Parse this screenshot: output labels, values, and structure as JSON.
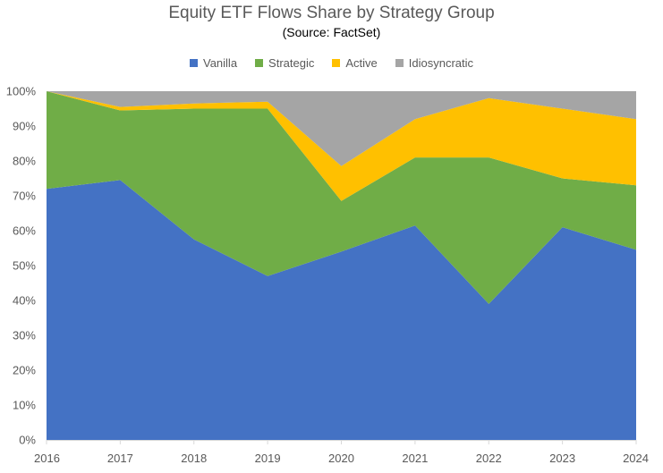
{
  "chart_data": {
    "type": "area",
    "stacked": true,
    "title": "Equity ETF Flows Share by Strategy Group",
    "subtitle": "(Source: FactSet)",
    "x": [
      "2016",
      "2017",
      "2018",
      "2019",
      "2020",
      "2021",
      "2022",
      "2023",
      "2024"
    ],
    "series": [
      {
        "name": "Vanilla",
        "color": "#4472C4",
        "values": [
          72,
          74.5,
          57.5,
          47,
          54,
          61.5,
          39,
          61,
          54.5
        ]
      },
      {
        "name": "Strategic",
        "color": "#70AD47",
        "values": [
          28,
          20,
          37.5,
          48,
          14.5,
          19.5,
          42,
          14,
          18.5
        ]
      },
      {
        "name": "Active",
        "color": "#FFC000",
        "values": [
          0,
          1,
          1.5,
          2,
          10,
          11,
          17,
          20,
          19
        ]
      },
      {
        "name": "Idiosyncratic",
        "color": "#A5A5A5",
        "values": [
          0,
          4.5,
          3.5,
          3,
          21.5,
          8,
          2,
          5,
          8
        ]
      }
    ],
    "ylim": [
      0,
      100
    ],
    "y_ticks": [
      "0%",
      "10%",
      "20%",
      "30%",
      "40%",
      "50%",
      "60%",
      "70%",
      "80%",
      "90%",
      "100%"
    ],
    "legend": "top"
  }
}
